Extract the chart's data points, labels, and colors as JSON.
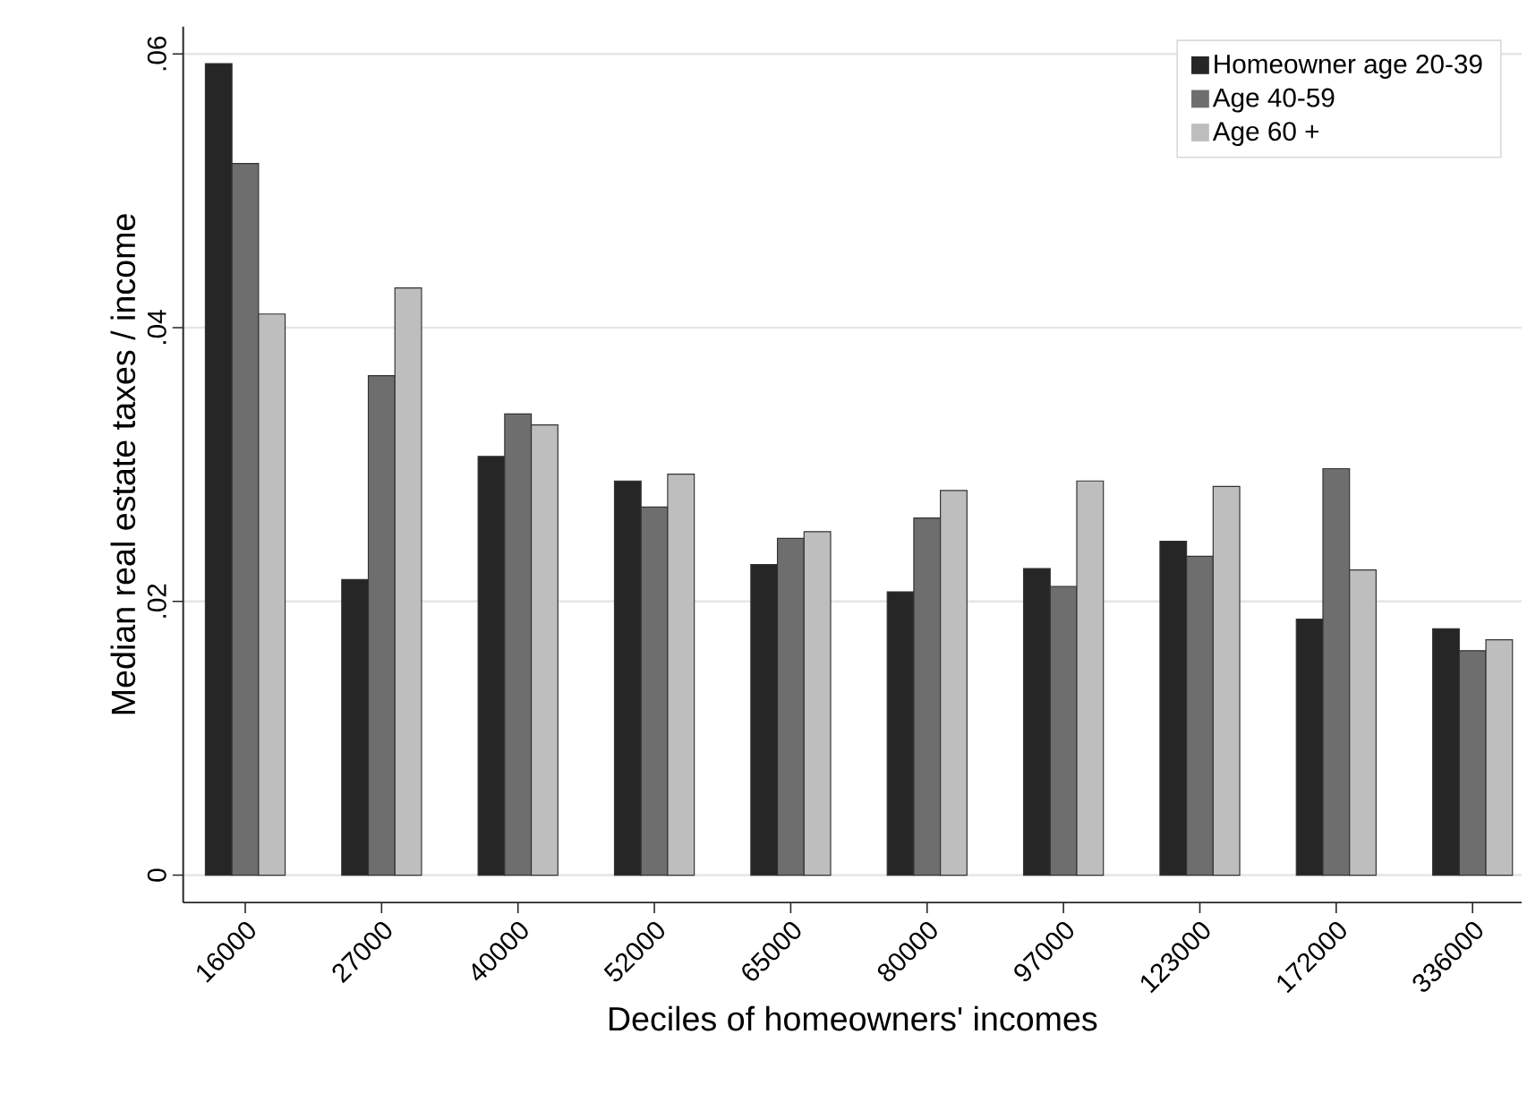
{
  "chart_data": {
    "type": "bar",
    "xlabel": "Deciles of homeowners' incomes",
    "ylabel": "Median real estate taxes / income",
    "categories": [
      "16000",
      "27000",
      "40000",
      "52000",
      "65000",
      "80000",
      "97000",
      "123000",
      "172000",
      "336000"
    ],
    "series": [
      {
        "name": "Homeowner age 20-39",
        "color": "#262626",
        "values": [
          0.0593,
          0.0216,
          0.0306,
          0.0288,
          0.0227,
          0.0207,
          0.0224,
          0.0244,
          0.0187,
          0.018
        ]
      },
      {
        "name": "Age 40-59",
        "color": "#6e6e6e",
        "values": [
          0.052,
          0.0365,
          0.0337,
          0.0269,
          0.0246,
          0.0261,
          0.0211,
          0.0233,
          0.0297,
          0.0164
        ]
      },
      {
        "name": "Age 60 +",
        "color": "#bebebe",
        "values": [
          0.041,
          0.0429,
          0.0329,
          0.0293,
          0.0251,
          0.0281,
          0.0288,
          0.0284,
          0.0223,
          0.0172
        ]
      }
    ],
    "ylim": [
      -0.002,
      0.062
    ],
    "yticks": [
      0,
      {
        "value": 0.02,
        "label": ".02"
      },
      {
        "value": 0.04,
        "label": ".04"
      },
      {
        "value": 0.06,
        "label": ".06"
      }
    ],
    "grid": "y",
    "legend": "top right"
  }
}
